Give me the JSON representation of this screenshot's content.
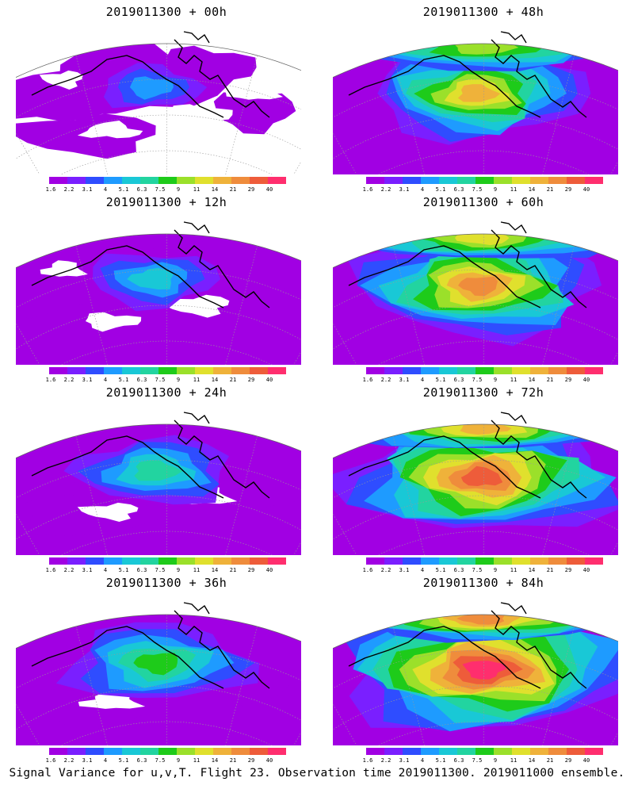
{
  "caption": "Signal Variance for u,v,T. Flight 23. Observation time 2019011300. 2019011000 ensemble.",
  "colorbar": {
    "colors": [
      "#a100e3",
      "#7a1fff",
      "#2f4dff",
      "#1e9bff",
      "#19c8d6",
      "#22d4a0",
      "#1ecb1a",
      "#9be02a",
      "#e0e02d",
      "#efb23a",
      "#ef8c3c",
      "#ee5c3a",
      "#ff2e6e"
    ],
    "labels": [
      "1.6",
      "2.2",
      "3.1",
      "4",
      "5.1",
      "6.3",
      "7.5",
      "9",
      "11",
      "14",
      "21",
      "29",
      "40"
    ]
  },
  "panels": [
    {
      "title": "2019011300 + 00h",
      "level": 0
    },
    {
      "title": "2019011300 + 48h",
      "level": 4
    },
    {
      "title": "2019011300 + 12h",
      "level": 1
    },
    {
      "title": "2019011300 + 60h",
      "level": 5
    },
    {
      "title": "2019011300 + 24h",
      "level": 2
    },
    {
      "title": "2019011300 + 72h",
      "level": 6
    },
    {
      "title": "2019011300 + 36h",
      "level": 3
    },
    {
      "title": "2019011300 + 84h",
      "level": 7
    }
  ]
}
